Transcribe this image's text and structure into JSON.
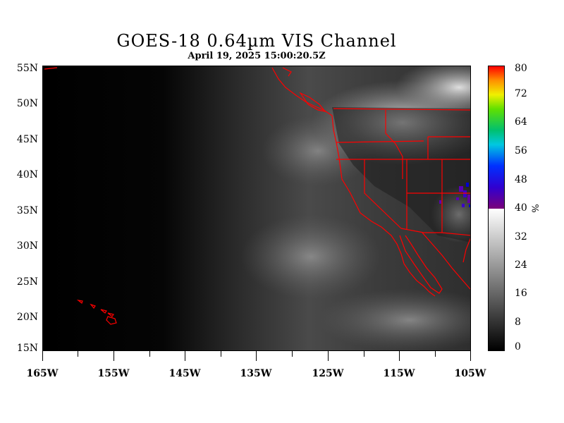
{
  "title": "GOES-18  0.64µm VIS Channel",
  "subtitle": "April 19,  2025 15:00:20.5Z",
  "map": {
    "lon_range": [
      -165,
      -105
    ],
    "lat_range": [
      15,
      55
    ],
    "lat_labels": [
      "55N",
      "50N",
      "45N",
      "40N",
      "35N",
      "30N",
      "25N",
      "20N",
      "15N"
    ],
    "lon_labels": [
      "165W",
      "155W",
      "145W",
      "135W",
      "125W",
      "115W",
      "105W"
    ],
    "boundary_color": "#ff0000",
    "background_color": "#000000"
  },
  "colorbar": {
    "labels": [
      "80",
      "72",
      "64",
      "56",
      "48",
      "40",
      "32",
      "24",
      "16",
      "8",
      "0"
    ],
    "unit": "%",
    "range": [
      0,
      80
    ]
  }
}
